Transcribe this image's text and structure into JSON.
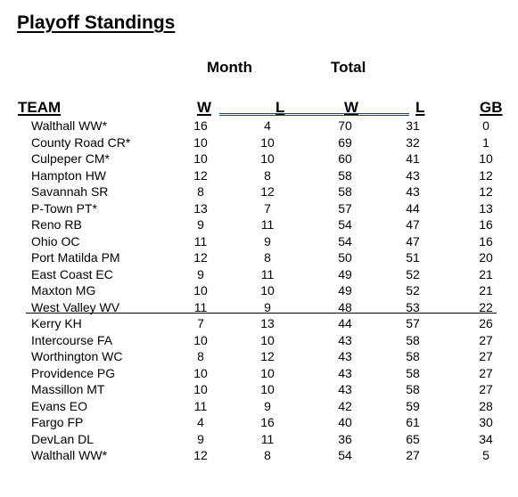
{
  "title": "Playoff Standings",
  "groups": {
    "month": "Month",
    "total": "Total"
  },
  "headers": {
    "team": "TEAM",
    "month_w": "W",
    "month_l": "L",
    "total_w": "W",
    "total_l": "L",
    "gb": "GB"
  },
  "rows": [
    {
      "team": "Walthall WW*",
      "mw": "16",
      "ml": "4",
      "tw": "70",
      "tl": "31",
      "gb": "0"
    },
    {
      "team": "County Road CR*",
      "mw": "10",
      "ml": "10",
      "tw": "69",
      "tl": "32",
      "gb": "1"
    },
    {
      "team": "Culpeper CM*",
      "mw": "10",
      "ml": "10",
      "tw": "60",
      "tl": "41",
      "gb": "10"
    },
    {
      "team": "Hampton HW",
      "mw": "12",
      "ml": "8",
      "tw": "58",
      "tl": "43",
      "gb": "12"
    },
    {
      "team": "Savannah SR",
      "mw": "8",
      "ml": "12",
      "tw": "58",
      "tl": "43",
      "gb": "12"
    },
    {
      "team": "P-Town PT*",
      "mw": "13",
      "ml": "7",
      "tw": "57",
      "tl": "44",
      "gb": "13"
    },
    {
      "team": "Reno RB",
      "mw": "9",
      "ml": "11",
      "tw": "54",
      "tl": "47",
      "gb": "16"
    },
    {
      "team": "Ohio OC",
      "mw": "11",
      "ml": "9",
      "tw": "54",
      "tl": "47",
      "gb": "16"
    },
    {
      "team": "Port Matilda PM",
      "mw": "12",
      "ml": "8",
      "tw": "50",
      "tl": "51",
      "gb": "20"
    },
    {
      "team": "East Coast EC",
      "mw": "9",
      "ml": "11",
      "tw": "49",
      "tl": "52",
      "gb": "21"
    },
    {
      "team": "Maxton MG",
      "mw": "10",
      "ml": "10",
      "tw": "49",
      "tl": "52",
      "gb": "21"
    },
    {
      "team": "West Valley WV",
      "mw": "11",
      "ml": "9",
      "tw": "48",
      "tl": "53",
      "gb": "22"
    },
    {
      "team": "Kerry KH",
      "mw": "7",
      "ml": "13",
      "tw": "44",
      "tl": "57",
      "gb": "26"
    },
    {
      "team": "Intercourse FA",
      "mw": "10",
      "ml": "10",
      "tw": "43",
      "tl": "58",
      "gb": "27"
    },
    {
      "team": "Worthington WC",
      "mw": "8",
      "ml": "12",
      "tw": "43",
      "tl": "58",
      "gb": "27"
    },
    {
      "team": "Providence PG",
      "mw": "10",
      "ml": "10",
      "tw": "43",
      "tl": "58",
      "gb": "27"
    },
    {
      "team": "Massillon MT",
      "mw": "10",
      "ml": "10",
      "tw": "43",
      "tl": "58",
      "gb": "27"
    },
    {
      "team": "Evans EO",
      "mw": "11",
      "ml": "9",
      "tw": "42",
      "tl": "59",
      "gb": "28"
    },
    {
      "team": "Fargo FP",
      "mw": "4",
      "ml": "16",
      "tw": "40",
      "tl": "61",
      "gb": "30"
    },
    {
      "team": "DevLan DL",
      "mw": "9",
      "ml": "11",
      "tw": "36",
      "tl": "65",
      "gb": "34"
    },
    {
      "team": "Walthall WW*",
      "mw": "12",
      "ml": "8",
      "tw": "54",
      "tl": "27",
      "gb": "5"
    }
  ]
}
